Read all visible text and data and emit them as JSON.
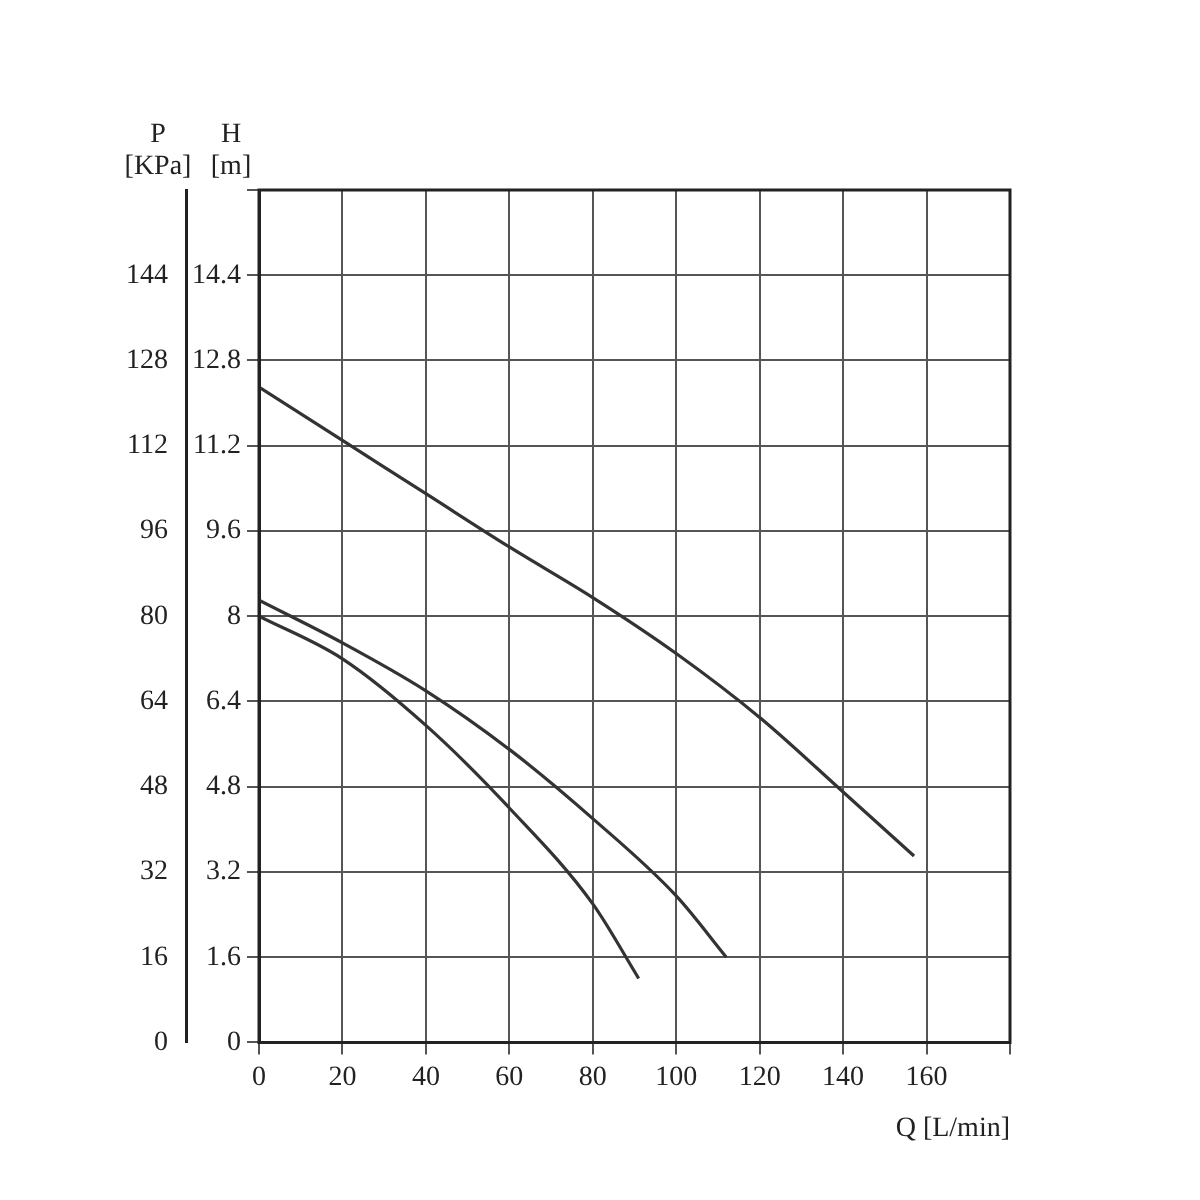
{
  "chart_data": {
    "type": "line",
    "xlabel": "Q [L/min]",
    "ylabel": "H [m]",
    "y2label": "P [KPa]",
    "xlim": [
      0,
      180
    ],
    "xticks": [
      0,
      20,
      40,
      60,
      80,
      100,
      120,
      140,
      160,
      {
        "value": 180,
        "label": null
      }
    ],
    "ylim": [
      0,
      16
    ],
    "yticks": [
      0,
      1.6,
      3.2,
      4.8,
      6.4,
      8,
      9.6,
      11.2,
      12.8,
      14.4,
      {
        "value": 16,
        "label": null
      }
    ],
    "y2lim": [
      0,
      160
    ],
    "y2ticks": [
      0,
      16,
      32,
      48,
      64,
      80,
      96,
      112,
      128,
      144
    ],
    "grid": true,
    "legend": false,
    "marker": "none",
    "line_style": "solid",
    "series": [
      {
        "color": "#333333",
        "x": [
          0,
          20,
          40,
          60,
          80,
          100,
          120,
          140,
          157
        ],
        "values": [
          12.3,
          11.3,
          10.3,
          9.3,
          8.35,
          7.3,
          6.1,
          4.7,
          3.5
        ]
      },
      {
        "color": "#333333",
        "x": [
          0,
          20,
          40,
          60,
          80,
          100,
          112
        ],
        "values": [
          8.3,
          7.5,
          6.6,
          5.5,
          4.2,
          2.75,
          1.6
        ]
      },
      {
        "color": "#333333",
        "x": [
          0,
          20,
          40,
          60,
          80,
          91
        ],
        "values": [
          8.0,
          7.2,
          5.95,
          4.4,
          2.6,
          1.2
        ]
      }
    ]
  }
}
